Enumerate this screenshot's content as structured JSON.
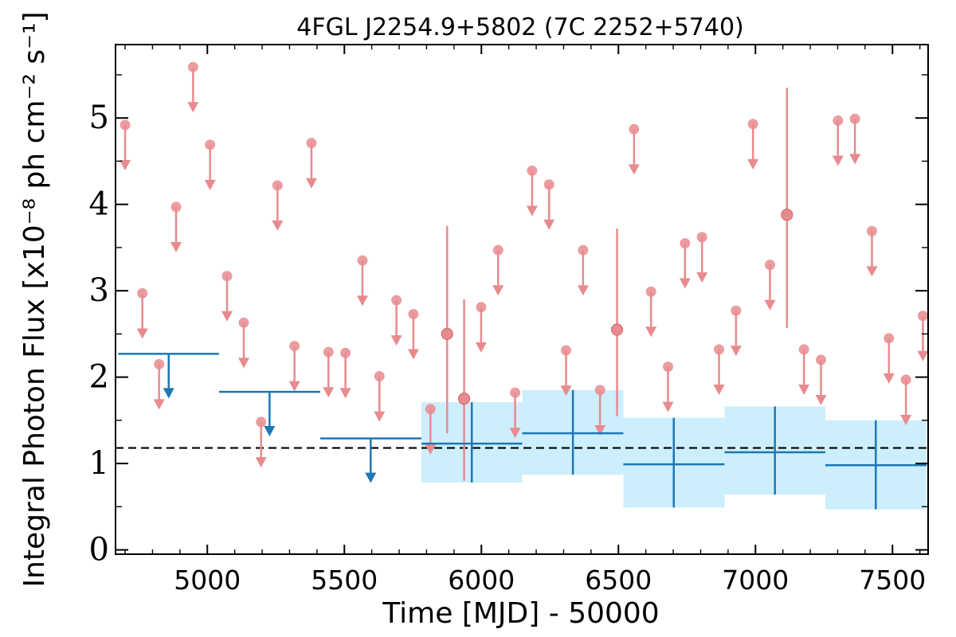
{
  "chart_data": {
    "type": "scatter",
    "title": "4FGL J2254.9+5802 (7C 2252+5740)",
    "xlabel": "Time [MJD] - 50000",
    "ylabel": "Integral Photon Flux [x10⁻⁸ ph cm⁻² s⁻¹]",
    "xlim": [
      4665,
      7630
    ],
    "ylim": [
      -0.05,
      5.85
    ],
    "xticks": [
      5000,
      5500,
      6000,
      6500,
      7000,
      7500
    ],
    "yticks": [
      0,
      1,
      2,
      3,
      4,
      5
    ],
    "grid": false,
    "legend": "none",
    "reference_line": {
      "y": 1.18,
      "style": "dashed",
      "color": "#000000"
    },
    "colors": {
      "monthly": "#e78b8f",
      "yearly": "#1f77b4",
      "band": "#cdeefc"
    },
    "series": [
      {
        "kind": "monthly_upper_limits",
        "values": [
          {
            "x": 4700,
            "y": 4.92
          },
          {
            "x": 4763,
            "y": 2.97
          },
          {
            "x": 4824,
            "y": 2.15
          },
          {
            "x": 4886,
            "y": 3.97
          },
          {
            "x": 4948,
            "y": 5.59
          },
          {
            "x": 5010,
            "y": 4.69
          },
          {
            "x": 5072,
            "y": 3.17
          },
          {
            "x": 5133,
            "y": 2.63
          },
          {
            "x": 5196,
            "y": 1.48
          },
          {
            "x": 5256,
            "y": 4.22
          },
          {
            "x": 5318,
            "y": 2.36
          },
          {
            "x": 5380,
            "y": 4.71
          },
          {
            "x": 5442,
            "y": 2.29
          },
          {
            "x": 5504,
            "y": 2.28
          },
          {
            "x": 5566,
            "y": 3.35
          },
          {
            "x": 5628,
            "y": 2.01
          },
          {
            "x": 5690,
            "y": 2.89
          },
          {
            "x": 5752,
            "y": 2.73
          },
          {
            "x": 5814,
            "y": 1.63
          },
          {
            "x": 5999,
            "y": 2.81
          },
          {
            "x": 6061,
            "y": 3.47
          },
          {
            "x": 6123,
            "y": 1.82
          },
          {
            "x": 6185,
            "y": 4.39
          },
          {
            "x": 6247,
            "y": 4.23
          },
          {
            "x": 6309,
            "y": 2.31
          },
          {
            "x": 6371,
            "y": 3.47
          },
          {
            "x": 6433,
            "y": 1.85
          },
          {
            "x": 6557,
            "y": 4.87
          },
          {
            "x": 6619,
            "y": 2.99
          },
          {
            "x": 6681,
            "y": 2.12
          },
          {
            "x": 6743,
            "y": 3.55
          },
          {
            "x": 6805,
            "y": 3.62
          },
          {
            "x": 6867,
            "y": 2.32
          },
          {
            "x": 6929,
            "y": 2.77
          },
          {
            "x": 6991,
            "y": 4.93
          },
          {
            "x": 7053,
            "y": 3.3
          },
          {
            "x": 7177,
            "y": 2.32
          },
          {
            "x": 7239,
            "y": 2.2
          },
          {
            "x": 7301,
            "y": 4.97
          },
          {
            "x": 7363,
            "y": 4.99
          },
          {
            "x": 7425,
            "y": 3.69
          },
          {
            "x": 7487,
            "y": 2.45
          },
          {
            "x": 7549,
            "y": 1.97
          },
          {
            "x": 7611,
            "y": 2.71
          }
        ]
      },
      {
        "kind": "monthly_detections",
        "values": [
          {
            "x": 5875,
            "y": 2.5,
            "lo": 1.35,
            "hi": 3.75
          },
          {
            "x": 5937,
            "y": 1.75,
            "lo": 0.8,
            "hi": 2.9
          },
          {
            "x": 6495,
            "y": 2.55,
            "lo": 1.55,
            "hi": 3.72
          },
          {
            "x": 7115,
            "y": 3.88,
            "lo": 2.57,
            "hi": 5.35
          }
        ]
      },
      {
        "kind": "yearly_upper_limits",
        "values": [
          {
            "x": 4859,
            "x0": 4675,
            "x1": 5043,
            "y": 2.27
          },
          {
            "x": 5227,
            "x0": 5043,
            "x1": 5412,
            "y": 1.83
          },
          {
            "x": 5596,
            "x0": 5412,
            "x1": 5781,
            "y": 1.29
          }
        ]
      },
      {
        "kind": "yearly_detections",
        "values": [
          {
            "x": 5965,
            "x0": 5781,
            "x1": 6149,
            "y": 1.23,
            "lo": 0.78,
            "hi": 1.71
          },
          {
            "x": 6334,
            "x0": 6149,
            "x1": 6518,
            "y": 1.35,
            "lo": 0.87,
            "hi": 1.85
          },
          {
            "x": 6702,
            "x0": 6518,
            "x1": 6887,
            "y": 0.99,
            "lo": 0.49,
            "hi": 1.53
          },
          {
            "x": 7071,
            "x0": 6887,
            "x1": 7255,
            "y": 1.13,
            "lo": 0.64,
            "hi": 1.66
          },
          {
            "x": 7439,
            "x0": 7255,
            "x1": 7624,
            "y": 0.98,
            "lo": 0.47,
            "hi": 1.5
          }
        ]
      }
    ]
  }
}
